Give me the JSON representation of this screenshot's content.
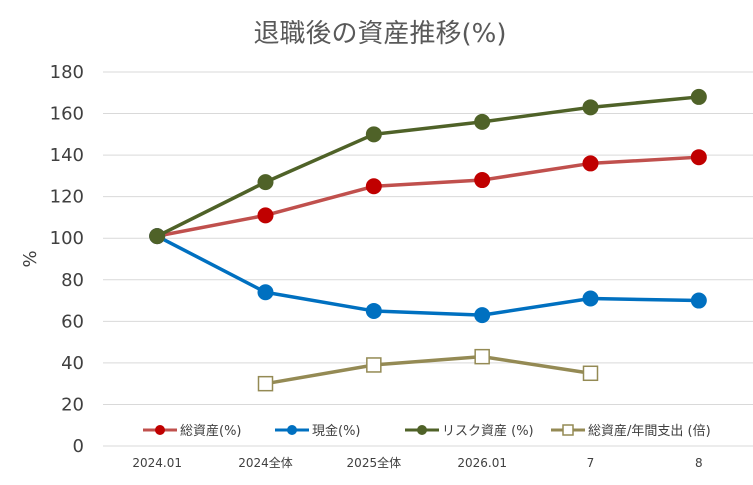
{
  "chart_data": {
    "type": "line",
    "title": "退職後の資産推移(%)",
    "xlabel": "",
    "ylabel": "%",
    "ylim": [
      0,
      180
    ],
    "ytick_step": 20,
    "yticks": [
      "0",
      "20",
      "40",
      "60",
      "80",
      "100",
      "120",
      "140",
      "160",
      "180"
    ],
    "grid": true,
    "legend_position": "bottom",
    "categories": [
      "2024.01",
      "2024全体",
      "2025全体",
      "2026.01",
      "7",
      "8"
    ],
    "series": [
      {
        "name": "総資産(%)",
        "color": "#C0504D",
        "marker": "circle",
        "marker_color": "#C00000",
        "values": [
          101,
          111,
          125,
          128,
          136,
          139
        ]
      },
      {
        "name": "現金(%)",
        "color": "#0070C0",
        "marker": "circle",
        "marker_color": "#0070C0",
        "values": [
          101,
          74,
          65,
          63,
          71,
          70
        ]
      },
      {
        "name": "リスク資産 (%)",
        "color": "#4F6228",
        "marker": "circle",
        "marker_color": "#4F6228",
        "values": [
          101,
          127,
          150,
          156,
          163,
          168
        ]
      },
      {
        "name": "総資産/年間支出 (倍)",
        "color": "#948A54",
        "marker": "square-open",
        "marker_color": "#948A54",
        "values": [
          null,
          30,
          39,
          43,
          35,
          null
        ]
      }
    ]
  }
}
